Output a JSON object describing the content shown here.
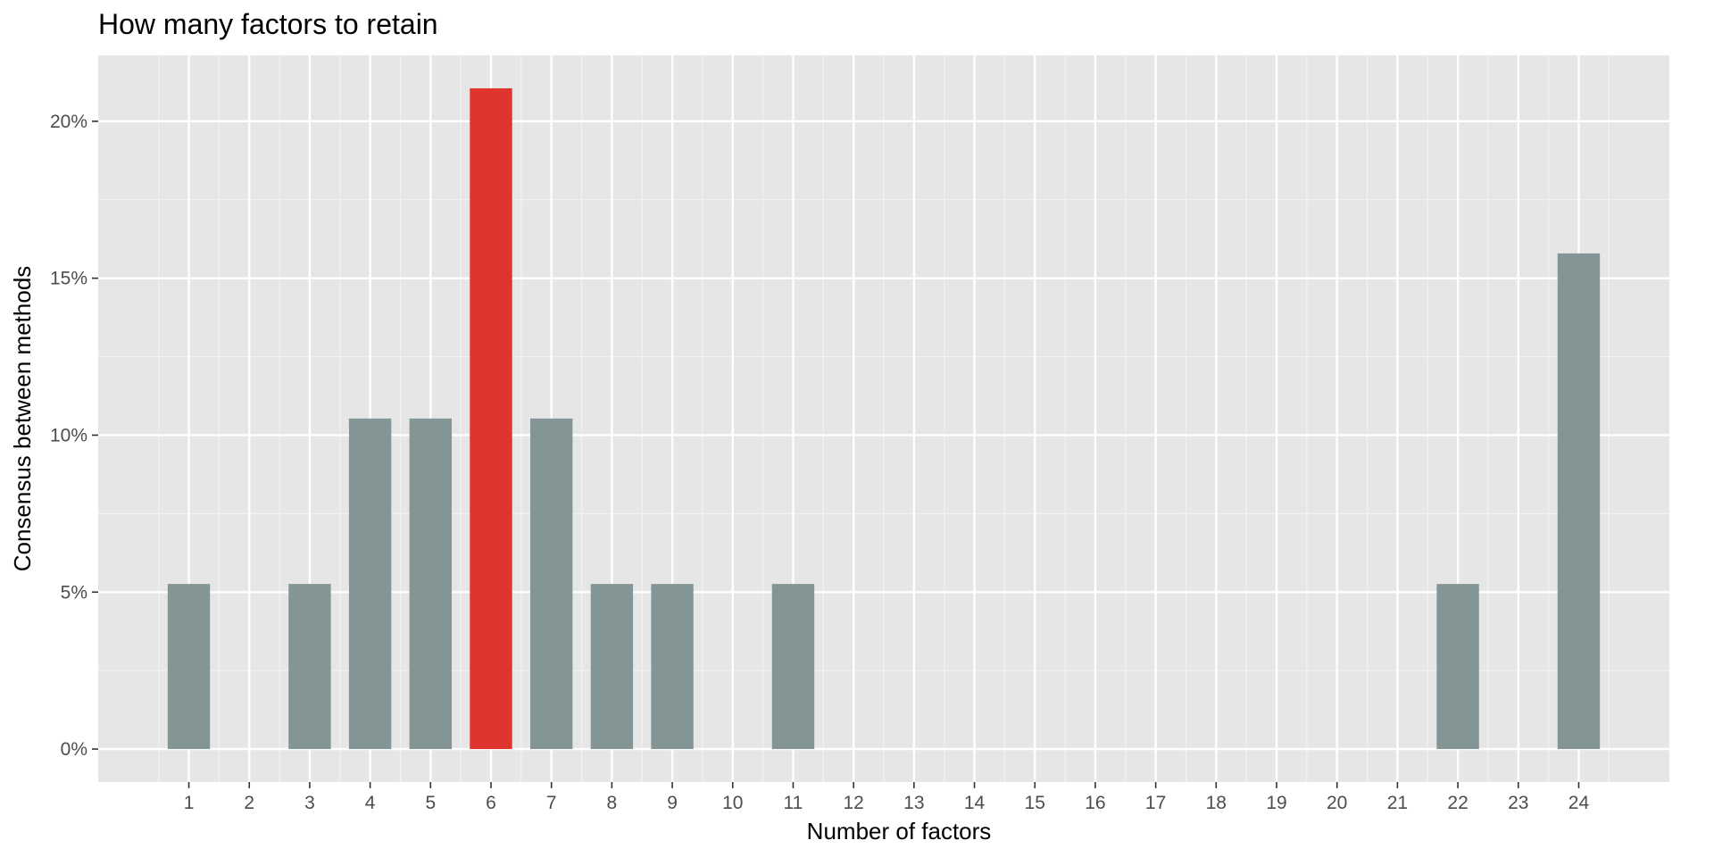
{
  "chart_data": {
    "type": "bar",
    "title": "How many factors to retain",
    "xlabel": "Number of factors",
    "ylabel": "Consensus between methods",
    "categories": [
      "1",
      "2",
      "3",
      "4",
      "5",
      "6",
      "7",
      "8",
      "9",
      "10",
      "11",
      "12",
      "13",
      "14",
      "15",
      "16",
      "17",
      "18",
      "19",
      "20",
      "21",
      "22",
      "23",
      "24"
    ],
    "values": [
      5.26,
      0,
      5.26,
      10.53,
      10.53,
      21.05,
      10.53,
      5.26,
      5.26,
      0,
      5.26,
      0,
      0,
      0,
      0,
      0,
      0,
      0,
      0,
      0,
      0,
      5.26,
      0,
      15.79
    ],
    "highlight_category": "6",
    "y_ticks": [
      0,
      5,
      10,
      15,
      20
    ],
    "y_tick_labels": [
      "0%",
      "5%",
      "10%",
      "15%",
      "20%"
    ],
    "ylim": [
      -1.05,
      22.1
    ],
    "xlim": [
      -0.5,
      25.5
    ],
    "grid": true,
    "colors": {
      "panel_background": "#e6e6e6",
      "grid_major": "#ffffff",
      "grid_minor": "#f2f2f2",
      "bar_default": "#839595",
      "bar_highlight": "#e0352f",
      "text": "#000000",
      "tick_text": "#4d4d4d",
      "tick_mark": "#333333"
    }
  }
}
